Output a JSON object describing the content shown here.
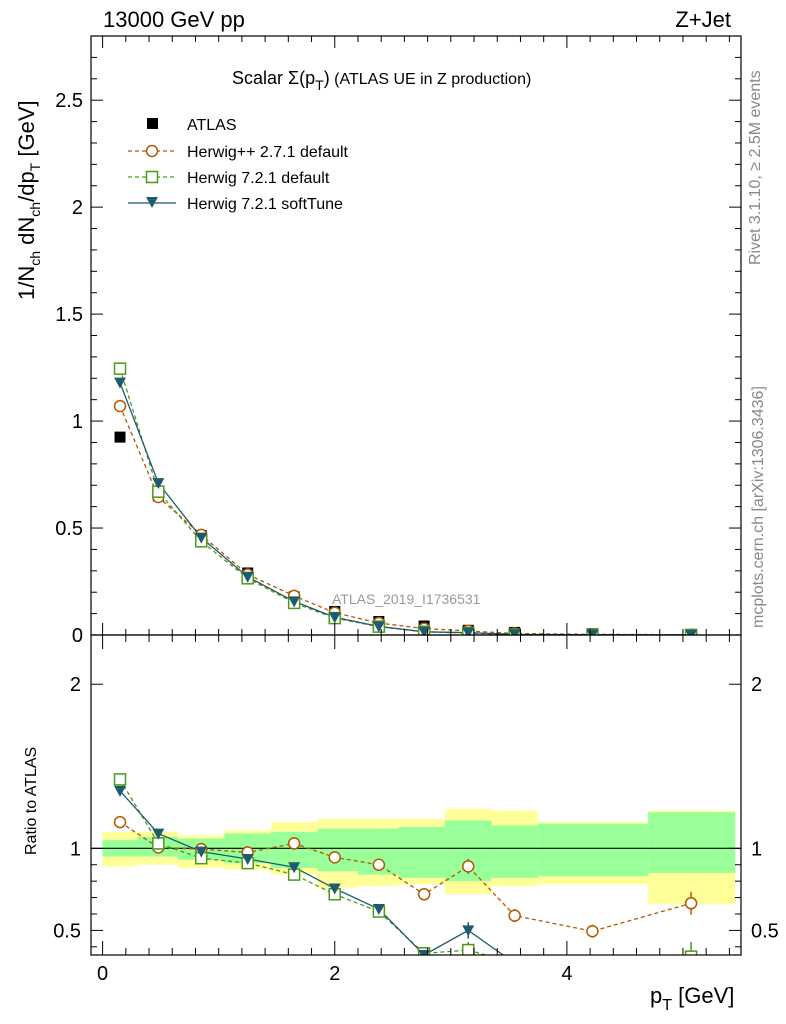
{
  "header": {
    "left": "13000 GeV pp",
    "right": "Z+Jet"
  },
  "side_labels": {
    "top": "Rivet 3.1.10, ≥ 2.5M events",
    "bottom": "mcplots.cern.ch [arXiv:1306.3436]"
  },
  "watermark": "ATLAS_2019_I1736531",
  "colors": {
    "atlas": "#000000",
    "herwigpp": "#b35900",
    "herwig721": "#4c9a1a",
    "softtune": "#1f5a6e",
    "band_outer": "#ffff99",
    "band_inner": "#99ff99"
  },
  "chart_data": [
    {
      "type": "scatter",
      "title": "Scalar Σ(p_T) (ATLAS UE in Z production)",
      "title_parts": {
        "a": "Scalar ",
        "sigma": "Σ(p",
        "sub": "T",
        "b": ")",
        "c": " (ATLAS UE in Z production)"
      },
      "ylabel": "1/N_ch dN_ch/dp_T [GeV]",
      "ylabel_parts": {
        "a": "1/N",
        "s1": "ch",
        "b": " dN",
        "s2": "ch",
        "c": "/dp",
        "s3": "T",
        "d": " [GeV]"
      },
      "xlim": [
        -0.1,
        5.5
      ],
      "ylim": [
        0,
        2.8
      ],
      "y_ticks": [
        "0",
        "0.5",
        "1",
        "1.5",
        "2",
        "2.5"
      ],
      "legend_position": "top-left",
      "bins": [
        [
          0.0,
          0.3
        ],
        [
          0.3,
          0.65
        ],
        [
          0.65,
          1.05
        ],
        [
          1.05,
          1.45
        ],
        [
          1.45,
          1.85
        ],
        [
          1.85,
          2.2
        ],
        [
          2.2,
          2.55
        ],
        [
          2.55,
          2.95
        ],
        [
          2.95,
          3.35
        ],
        [
          3.35,
          3.75
        ],
        [
          3.75,
          4.7
        ],
        [
          4.7,
          5.45
        ]
      ],
      "x": [
        0.15,
        0.48,
        0.85,
        1.25,
        1.65,
        2.0,
        2.38,
        2.77,
        3.15,
        3.55,
        4.22,
        5.07
      ],
      "series": [
        {
          "name": "ATLAS",
          "key": "atlas",
          "marker": "square",
          "values": [
            0.925,
            0.65,
            0.465,
            0.29,
            0.178,
            0.11,
            0.063,
            0.042,
            0.022,
            0.012,
            0.006,
            0.002
          ]
        },
        {
          "name": "Herwig++ 2.7.1 default",
          "key": "herwigpp",
          "marker": "circle",
          "dash": true,
          "values": [
            1.07,
            0.645,
            0.468,
            0.283,
            0.183,
            0.104,
            0.056,
            0.03,
            0.019,
            0.007,
            0.003,
            0.0013
          ]
        },
        {
          "name": "Herwig 7.2.1 default",
          "key": "herwig721",
          "marker": "open-square",
          "dash": true,
          "values": [
            1.245,
            0.67,
            0.438,
            0.265,
            0.15,
            0.079,
            0.039,
            0.015,
            0.009,
            0.002,
            0.001,
            0.0003
          ]
        },
        {
          "name": "Herwig 7.2.1 softTune",
          "key": "softtune",
          "marker": "triangle-down",
          "dash": false,
          "values": [
            1.18,
            0.71,
            0.455,
            0.272,
            0.157,
            0.083,
            0.04,
            0.015,
            0.011,
            0.003,
            0.001,
            0.0003
          ]
        }
      ]
    },
    {
      "type": "scatter",
      "ylabel": "Ratio to ATLAS",
      "xlabel": "p_T [GeV]",
      "xlabel_parts": {
        "a": "p",
        "sub": "T",
        "b": " [GeV]"
      },
      "xlim": [
        -0.1,
        5.5
      ],
      "ylim": [
        0.35,
        2.3
      ],
      "x_ticks": [
        "0",
        "2",
        "4"
      ],
      "y_ticks": [
        "0.5",
        "1",
        "2"
      ],
      "reference_line": 1,
      "band_inner": [
        [
          0.95,
          1.05
        ],
        [
          0.95,
          1.07
        ],
        [
          0.93,
          1.06
        ],
        [
          0.91,
          1.09
        ],
        [
          0.88,
          1.1
        ],
        [
          0.86,
          1.12
        ],
        [
          0.84,
          1.12
        ],
        [
          0.82,
          1.13
        ],
        [
          0.8,
          1.17
        ],
        [
          0.82,
          1.14
        ],
        [
          0.83,
          1.15
        ],
        [
          0.85,
          1.22
        ]
      ],
      "band_outer": [
        [
          0.89,
          1.1
        ],
        [
          0.9,
          1.1
        ],
        [
          0.88,
          1.08
        ],
        [
          0.87,
          1.11
        ],
        [
          0.84,
          1.16
        ],
        [
          0.76,
          1.18
        ],
        [
          0.77,
          1.18
        ],
        [
          0.78,
          1.18
        ],
        [
          0.72,
          1.24
        ],
        [
          0.77,
          1.23
        ],
        [
          0.78,
          1.16
        ],
        [
          0.66,
          1.23
        ]
      ],
      "series": [
        {
          "name": "Herwig++ 2.7.1 default",
          "key": "herwigpp",
          "marker": "circle",
          "dash": true,
          "values": [
            1.16,
            1.005,
            0.995,
            0.975,
            1.03,
            0.945,
            0.9,
            0.72,
            0.89,
            0.59,
            0.495,
            0.665
          ],
          "errors": [
            0.02,
            0.015,
            0.01,
            0.015,
            0.02,
            0.02,
            0.025,
            0.03,
            0.045,
            0.04,
            0.04,
            0.07
          ]
        },
        {
          "name": "Herwig 7.2.1 default",
          "key": "herwig721",
          "marker": "open-square",
          "dash": true,
          "values": [
            1.42,
            1.03,
            0.94,
            0.91,
            0.84,
            0.72,
            0.615,
            0.36,
            0.38,
            0.3,
            0.3,
            0.34
          ],
          "errors": [
            0.02,
            0.015,
            0.01,
            0.015,
            0.02,
            0.02,
            0.025,
            0.03,
            0.05,
            0,
            0,
            0.09
          ]
        },
        {
          "name": "Herwig 7.2.1 softTune",
          "key": "softtune",
          "marker": "triangle-down",
          "dash": false,
          "values": [
            1.35,
            1.09,
            0.98,
            0.935,
            0.885,
            0.755,
            0.63,
            0.35,
            0.5,
            0.3,
            0.3,
            0.3
          ],
          "errors": [
            0.02,
            0.015,
            0.01,
            0.015,
            0.02,
            0.02,
            0.025,
            0.03,
            0.05,
            0,
            0,
            0
          ]
        }
      ]
    }
  ]
}
